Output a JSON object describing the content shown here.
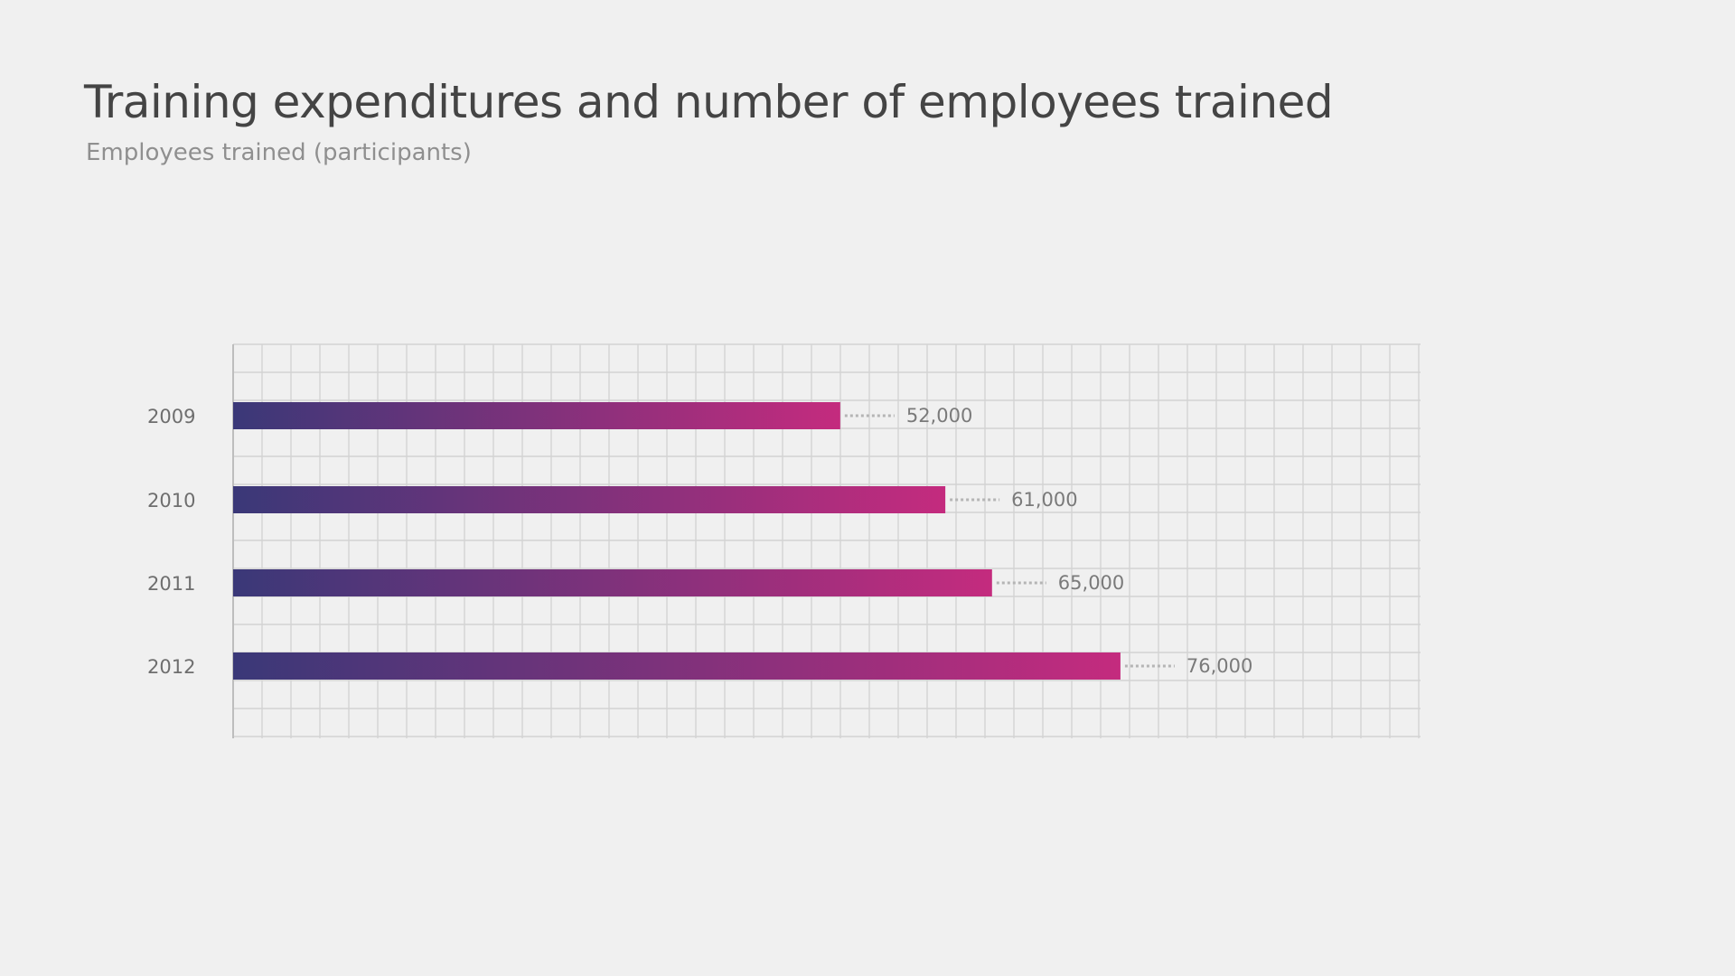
{
  "colors": {
    "background": "#f0f0f0",
    "bar_start": "#3a3878",
    "bar_end": "#c42b7e",
    "grid": "#d3d3d3",
    "leader_dots": "#b5b5b5"
  },
  "chart_data": {
    "type": "bar",
    "orientation": "horizontal",
    "title": "Training expenditures and number of employees trained",
    "subtitle": "Employees trained (participants)",
    "categories": [
      "2009",
      "2010",
      "2011",
      "2012"
    ],
    "values": [
      52000,
      61000,
      65000,
      76000
    ],
    "value_labels": [
      "52,000",
      "61,000",
      "65,000",
      "76,000"
    ],
    "xlim": [
      0,
      100000
    ],
    "grid": true,
    "legend": "none"
  }
}
